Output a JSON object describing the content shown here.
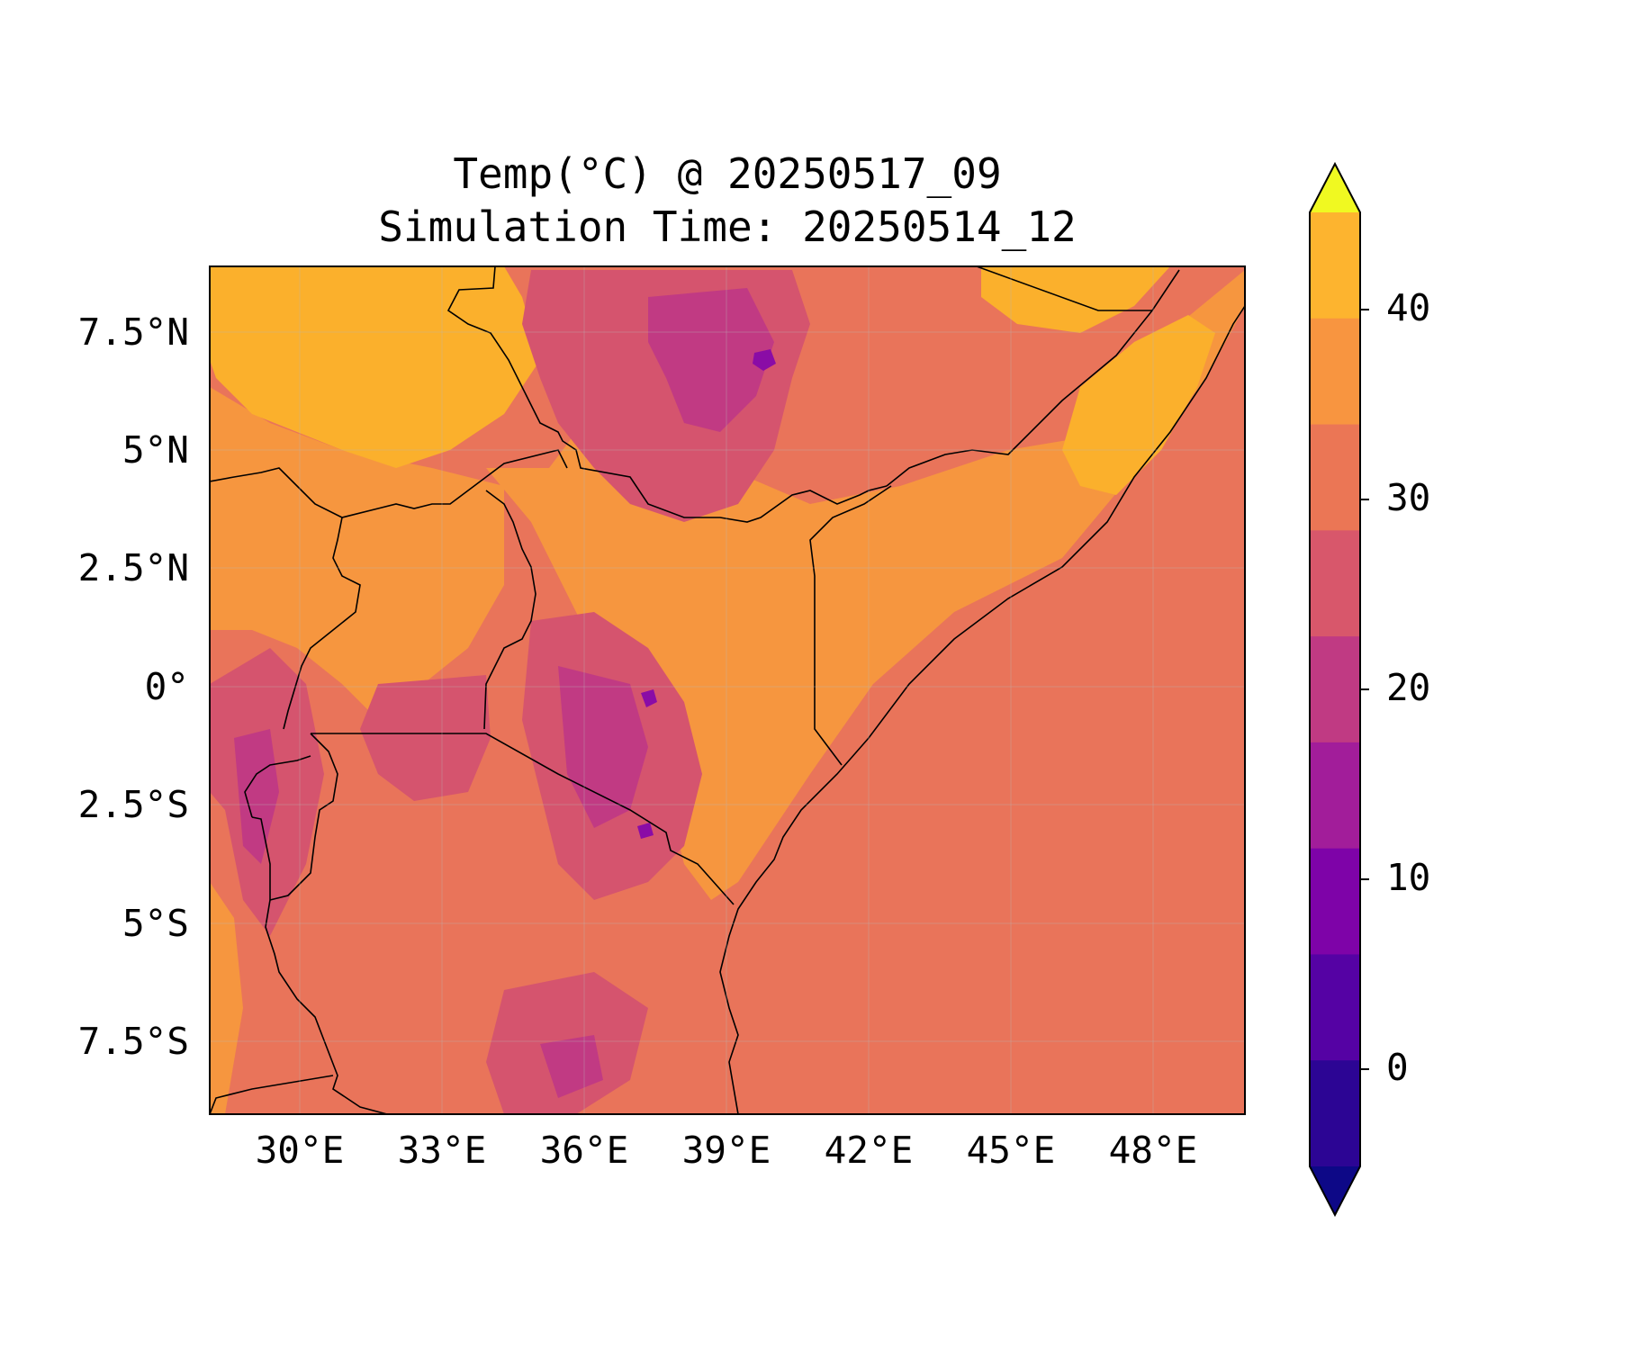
{
  "title": {
    "line1": "Temp(°C) @ 20250517_09",
    "line2": "Simulation Time: 20250514_12"
  },
  "x_ticks": [
    "30°E",
    "33°E",
    "36°E",
    "39°E",
    "42°E",
    "45°E",
    "48°E"
  ],
  "y_ticks": [
    "7.5°N",
    "5°N",
    "2.5°N",
    "0°",
    "2.5°S",
    "5°S",
    "7.5°S"
  ],
  "colorbar": {
    "ticks": [
      "40",
      "30",
      "20",
      "10",
      "0"
    ],
    "levels": [
      -5,
      0,
      5,
      10,
      15,
      20,
      25,
      30,
      35,
      40,
      45
    ],
    "colors": [
      "#0d0887",
      "#2c0594",
      "#5502a4",
      "#7e03a8",
      "#a21d9a",
      "#c03a83",
      "#d8576b",
      "#eb7655",
      "#f89540",
      "#fdb42f",
      "#f0f921"
    ],
    "extend": "both"
  },
  "map_palette": {
    "hot": "#fbb02c",
    "warm": "#f6963f",
    "mild": "#e9745a",
    "cool": "#d5546e",
    "cold": "#c13a83",
    "colder": "#a8229a",
    "coldest": "#8a0ca6",
    "border": "#000000"
  }
}
